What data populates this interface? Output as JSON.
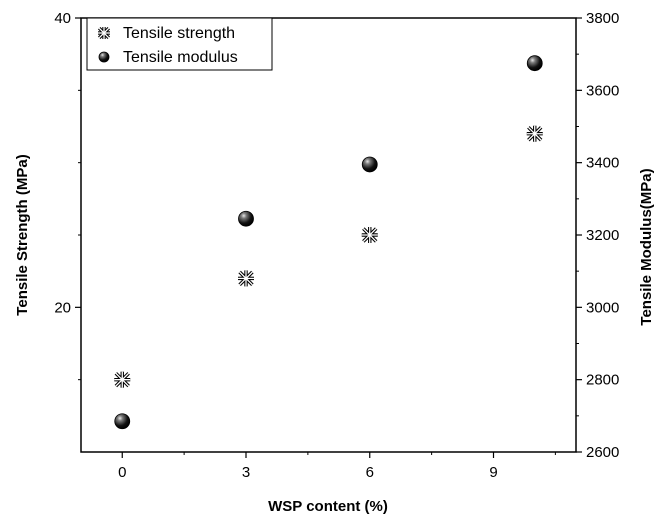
{
  "chart_data": {
    "type": "scatter",
    "x": [
      0,
      3,
      6,
      10
    ],
    "xlabel": "WSP content (%)",
    "ylabel_left": "Tensile Strength (MPa)",
    "ylabel_right": "Tensile Modulus(MPa)",
    "xlim": [
      -1,
      11
    ],
    "ylim_left": [
      10,
      40
    ],
    "ylim_right": [
      2600,
      3800
    ],
    "xticks": [
      0,
      3,
      6,
      9
    ],
    "yticks_left": [
      20,
      40
    ],
    "yticks_right": [
      2600,
      2800,
      3000,
      3200,
      3400,
      3600,
      3800
    ],
    "series": [
      {
        "name": "Tensile strength",
        "axis": "left",
        "marker": "asterisk",
        "values": [
          15,
          22,
          25,
          32
        ]
      },
      {
        "name": "Tensile modulus",
        "axis": "right",
        "marker": "sphere",
        "values": [
          2685,
          3245,
          3395,
          3675
        ]
      }
    ],
    "legend_position": "top-left",
    "grid": false
  }
}
